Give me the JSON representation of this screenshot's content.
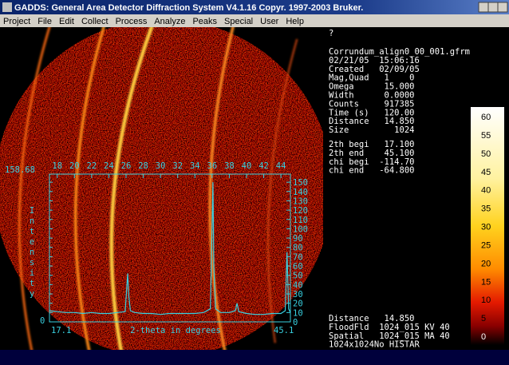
{
  "window": {
    "title": "GADDS: General Area Detector Diffraction System V4.1.16  Copyr. 1997-2003 Bruker.",
    "menu": [
      "Project",
      "File",
      "Edit",
      "Collect",
      "Process",
      "Analyze",
      "Peaks",
      "Special",
      "User",
      "Help"
    ]
  },
  "info": {
    "prompt": "?",
    "header_lines": [
      "Corrundum_align0_00_001.gfrm",
      "02/21/05  15:06:16",
      "Created   02/09/05",
      "Mag,Quad   1    0",
      "Omega      15.000",
      "Width      0.0000",
      "Counts     917385",
      "Time (s)   120.00",
      "Distance   14.850",
      "Size         1024"
    ],
    "range_lines": [
      "2th begi   17.100",
      "2th end    45.100",
      "chi begi  -114.70",
      "chi end   -64.800"
    ],
    "footer_lines": [
      "Distance   14.850",
      "FloodFld  1024_015 KV 40",
      "Spatial   1024_015 MA 40",
      "1024x1024No HISTAR"
    ]
  },
  "overlay": {
    "y_max": 158.68,
    "y_min": 0,
    "x_start": 17.1,
    "x_end": 45.1,
    "x_label": "2-theta in degrees",
    "y_label": "Intensity",
    "top_ticks": [
      18,
      20,
      22,
      24,
      26,
      28,
      30,
      32,
      34,
      36,
      38,
      40,
      42,
      44
    ],
    "right_ticks": [
      0,
      10,
      20,
      30,
      40,
      50,
      60,
      70,
      80,
      90,
      100,
      110,
      120,
      130,
      140,
      150
    ],
    "profile": {
      "x": [
        17.1,
        18,
        19,
        20,
        21,
        22,
        23,
        24,
        25,
        25.9,
        26.1,
        26.2,
        26.3,
        26.5,
        27,
        28,
        29,
        30,
        31,
        32,
        33,
        34,
        35,
        35.8,
        36.0,
        36.1,
        36.2,
        36.4,
        37,
        38,
        38.7,
        38.9,
        39.1,
        40,
        41,
        42,
        43,
        44,
        44.5,
        44.7,
        44.9,
        45.1
      ],
      "y": [
        12,
        11,
        10,
        10,
        9,
        10,
        9,
        9,
        10,
        11,
        40,
        52,
        30,
        12,
        10,
        9,
        9,
        8,
        9,
        9,
        9,
        9,
        10,
        14,
        100,
        150,
        60,
        14,
        10,
        10,
        12,
        20,
        11,
        9,
        8,
        8,
        9,
        9,
        12,
        75,
        14,
        10
      ]
    }
  },
  "colorbar": {
    "ticks": [
      60,
      55,
      50,
      45,
      40,
      35,
      30,
      25,
      20,
      15,
      10,
      5,
      0
    ]
  }
}
